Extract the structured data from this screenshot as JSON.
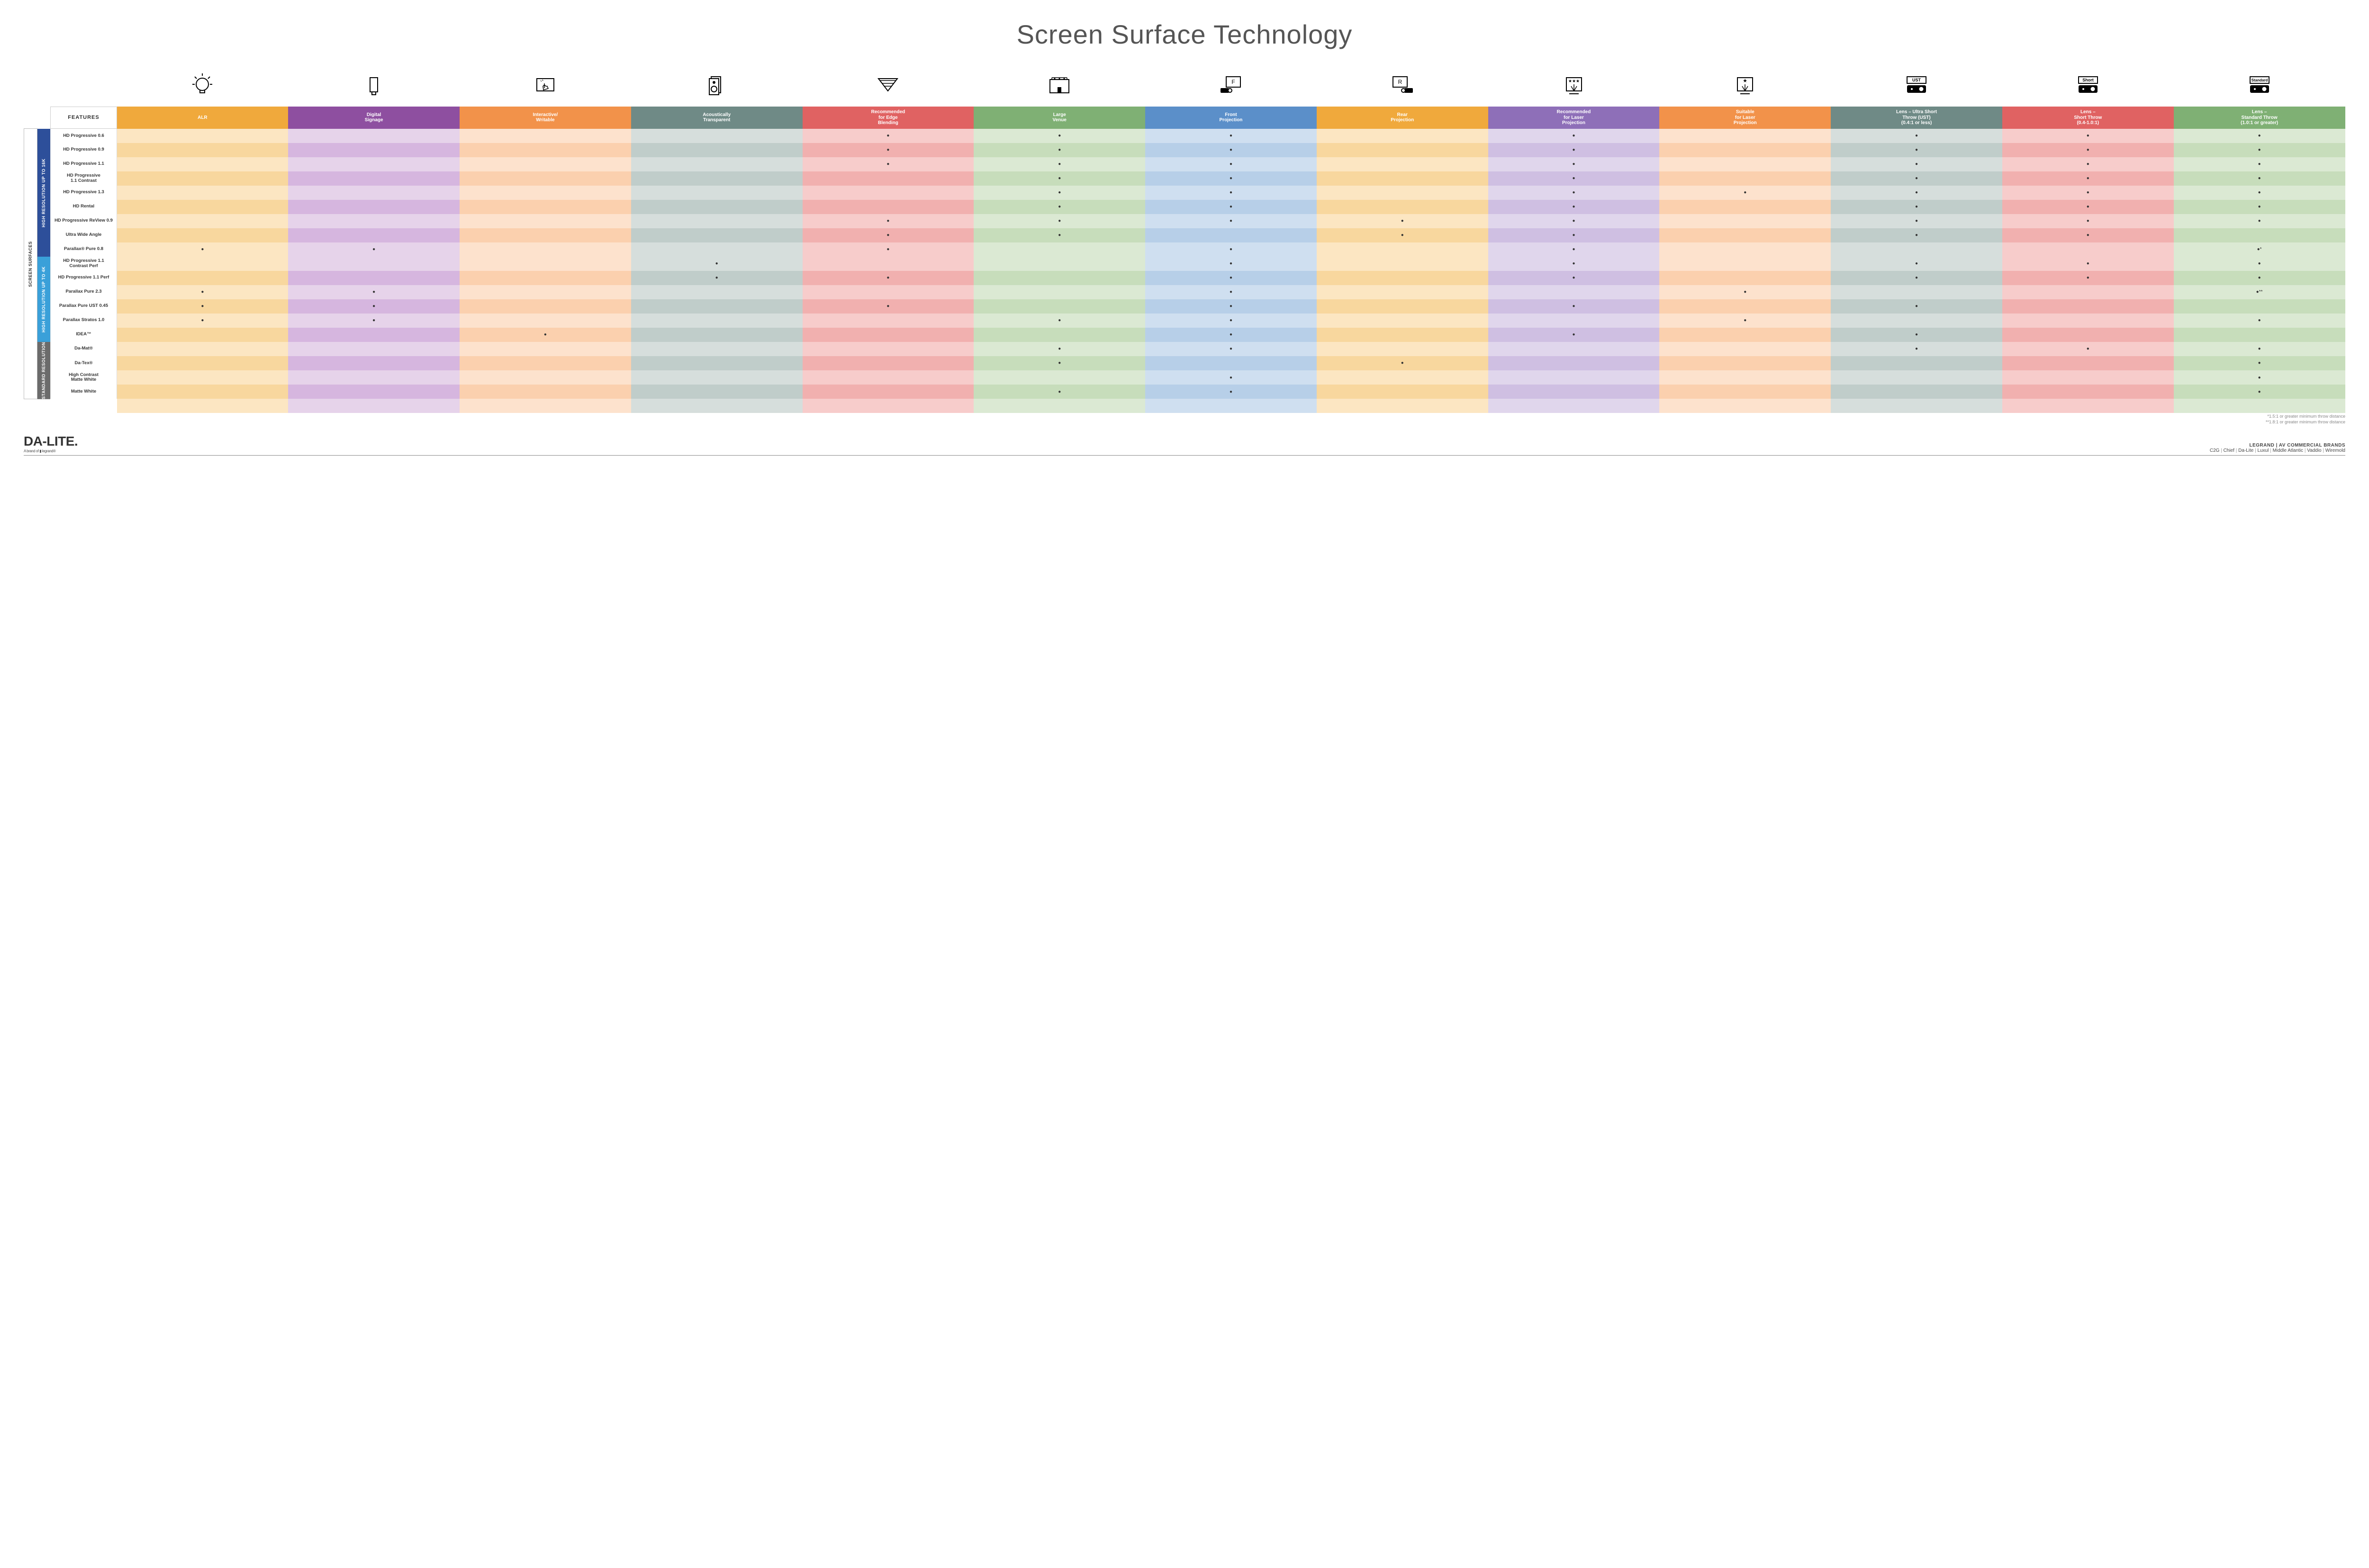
{
  "title": "Screen Surface Technology",
  "colors": {
    "columns": [
      {
        "key": "alr",
        "hdr": "#f0a93c",
        "light": "#fce6c2",
        "dark": "#f8d79e"
      },
      {
        "key": "signage",
        "hdr": "#8e4fa0",
        "light": "#e6d3ea",
        "dark": "#d6b6df"
      },
      {
        "key": "interactive",
        "hdr": "#f2924a",
        "light": "#fde2cd",
        "dark": "#fbd0ae"
      },
      {
        "key": "acoustic",
        "hdr": "#6f8a86",
        "light": "#d6dedc",
        "dark": "#c0cdca"
      },
      {
        "key": "edge",
        "hdr": "#e06262",
        "light": "#f7cccb",
        "dark": "#f1b0af"
      },
      {
        "key": "largevenue",
        "hdr": "#7fb074",
        "light": "#dbe9d3",
        "dark": "#c7ddbb"
      },
      {
        "key": "front",
        "hdr": "#5b8fc9",
        "light": "#cfdff0",
        "dark": "#b7cfe8"
      },
      {
        "key": "rear",
        "hdr": "#f0a93c",
        "light": "#fce6c2",
        "dark": "#f8d79e"
      },
      {
        "key": "reclaser",
        "hdr": "#8e6fb8",
        "light": "#e0d6ec",
        "dark": "#cfbfe2"
      },
      {
        "key": "suitlaser",
        "hdr": "#f2924a",
        "light": "#fde2cd",
        "dark": "#fbd0ae"
      },
      {
        "key": "ust",
        "hdr": "#6f8a86",
        "light": "#d6dedc",
        "dark": "#c0cdca"
      },
      {
        "key": "short",
        "hdr": "#e06262",
        "light": "#f7cccb",
        "dark": "#f1b0af"
      },
      {
        "key": "std",
        "hdr": "#7fb074",
        "light": "#dbe9d3",
        "dark": "#c7ddbb"
      }
    ],
    "groups": {
      "surfaces": "#ffffff",
      "16k": "#2d4f9a",
      "4k": "#3aa0d9",
      "std": "#6b6b6b"
    }
  },
  "columns": [
    {
      "key": "alr",
      "label": "ALR",
      "icon": "bulb"
    },
    {
      "key": "signage",
      "label": "Digital\nSignage",
      "icon": "kiosk"
    },
    {
      "key": "interactive",
      "label": "Interactive/\nWritable",
      "icon": "touch"
    },
    {
      "key": "acoustic",
      "label": "Acoustically\nTransparent",
      "icon": "speaker"
    },
    {
      "key": "edge",
      "label": "Recommended\nfor Edge\nBlending",
      "icon": "blend"
    },
    {
      "key": "largevenue",
      "label": "Large\nVenue",
      "icon": "venue"
    },
    {
      "key": "front",
      "label": "Front\nProjection",
      "icon": "front"
    },
    {
      "key": "rear",
      "label": "Rear\nProjection",
      "icon": "rear"
    },
    {
      "key": "reclaser",
      "label": "Recommended\nfor Laser\nProjection",
      "icon": "laserrec"
    },
    {
      "key": "suitlaser",
      "label": "Suitable\nfor Laser\nProjection",
      "icon": "lasersuit"
    },
    {
      "key": "ust",
      "label": "Lens – Ultra Short\nThrow (UST)\n(0.4:1 or less)",
      "icon": "projust"
    },
    {
      "key": "short",
      "label": "Lens –\nShort Throw\n(0.4-1.0:1)",
      "icon": "projshort"
    },
    {
      "key": "std",
      "label": "Lens –\nStandard Throw\n(1.0:1 or greater)",
      "icon": "projstd"
    }
  ],
  "features_header": "FEATURES",
  "side_labels": {
    "surfaces": "SCREEN SURFACES",
    "16k": "HIGH RESOLUTION UP TO 16K",
    "4k": "HIGH RESOLUTION UP TO 4K",
    "std": "STANDARD\nRESOLUTION"
  },
  "groups": [
    {
      "key": "16k",
      "rows": [
        {
          "name": "HD Progressive 0.6",
          "marks": {
            "edge": "●",
            "largevenue": "●",
            "front": "●",
            "reclaser": "●",
            "ust": "●",
            "short": "●",
            "std": "●"
          }
        },
        {
          "name": "HD Progressive 0.9",
          "marks": {
            "edge": "●",
            "largevenue": "●",
            "front": "●",
            "reclaser": "●",
            "ust": "●",
            "short": "●",
            "std": "●"
          }
        },
        {
          "name": "HD Progressive 1.1",
          "marks": {
            "edge": "●",
            "largevenue": "●",
            "front": "●",
            "reclaser": "●",
            "ust": "●",
            "short": "●",
            "std": "●"
          }
        },
        {
          "name": "HD Progressive\n1.1 Contrast",
          "marks": {
            "largevenue": "●",
            "front": "●",
            "reclaser": "●",
            "ust": "●",
            "short": "●",
            "std": "●"
          }
        },
        {
          "name": "HD Progressive 1.3",
          "marks": {
            "largevenue": "●",
            "front": "●",
            "reclaser": "●",
            "suitlaser": "●",
            "ust": "●",
            "short": "●",
            "std": "●"
          }
        },
        {
          "name": "HD Rental",
          "marks": {
            "largevenue": "●",
            "front": "●",
            "reclaser": "●",
            "ust": "●",
            "short": "●",
            "std": "●"
          }
        },
        {
          "name": "HD Progressive ReView 0.9",
          "marks": {
            "edge": "●",
            "largevenue": "●",
            "front": "●",
            "rear": "●",
            "reclaser": "●",
            "ust": "●",
            "short": "●",
            "std": "●"
          }
        },
        {
          "name": "Ultra Wide Angle",
          "marks": {
            "edge": "●",
            "largevenue": "●",
            "rear": "●",
            "reclaser": "●",
            "ust": "●",
            "short": "●"
          }
        },
        {
          "name": "Parallax® Pure 0.8",
          "marks": {
            "alr": "●",
            "signage": "●",
            "edge": "●",
            "front": "●",
            "reclaser": "●",
            "std": "●*"
          }
        }
      ]
    },
    {
      "key": "4k",
      "rows": [
        {
          "name": "HD Progressive 1.1\nContrast Perf",
          "marks": {
            "acoustic": "●",
            "front": "●",
            "reclaser": "●",
            "ust": "●",
            "short": "●",
            "std": "●"
          }
        },
        {
          "name": "HD Progressive 1.1 Perf",
          "marks": {
            "acoustic": "●",
            "edge": "●",
            "front": "●",
            "reclaser": "●",
            "ust": "●",
            "short": "●",
            "std": "●"
          }
        },
        {
          "name": "Parallax Pure 2.3",
          "marks": {
            "alr": "●",
            "signage": "●",
            "front": "●",
            "suitlaser": "●",
            "std": "●**"
          }
        },
        {
          "name": "Parallax Pure UST 0.45",
          "marks": {
            "alr": "●",
            "signage": "●",
            "edge": "●",
            "front": "●",
            "reclaser": "●",
            "ust": "●"
          }
        },
        {
          "name": "Parallax Stratos 1.0",
          "marks": {
            "alr": "●",
            "signage": "●",
            "largevenue": "●",
            "front": "●",
            "suitlaser": "●",
            "std": "●"
          }
        },
        {
          "name": "IDEA™",
          "marks": {
            "interactive": "●",
            "front": "●",
            "reclaser": "●",
            "ust": "●"
          }
        }
      ]
    },
    {
      "key": "std",
      "rows": [
        {
          "name": "Da-Mat®",
          "marks": {
            "largevenue": "●",
            "front": "●",
            "ust": "●",
            "short": "●",
            "std": "●"
          }
        },
        {
          "name": "Da-Tex®",
          "marks": {
            "largevenue": "●",
            "rear": "●",
            "std": "●"
          }
        },
        {
          "name": "High Contrast\nMatte White",
          "marks": {
            "front": "●",
            "std": "●"
          }
        },
        {
          "name": "Matte White",
          "marks": {
            "largevenue": "●",
            "front": "●",
            "std": "●"
          }
        }
      ]
    }
  ],
  "footnotes": [
    "*1.5:1 or greater minimum throw distance",
    "**1.8:1 or greater minimum throw distance"
  ],
  "footer": {
    "logo": "DA-LITE.",
    "logo_sub": "A brand of ▮ legrand®",
    "brands_title": "LEGRAND | AV COMMERCIAL BRANDS",
    "brands": [
      "C2G",
      "Chief",
      "Da-Lite",
      "Luxul",
      "Middle Atlantic",
      "Vaddio",
      "Wiremold"
    ]
  },
  "icons": {
    "bulb": "lightbulb-icon",
    "kiosk": "kiosk-icon",
    "touch": "touch-screen-icon",
    "speaker": "speaker-icon",
    "blend": "edge-blend-icon",
    "venue": "large-venue-icon",
    "front": "front-projection-icon",
    "rear": "rear-projection-icon",
    "laserrec": "laser-recommended-icon",
    "lasersuit": "laser-suitable-icon",
    "projust": "projector-ust-icon",
    "projshort": "projector-short-icon",
    "projstd": "projector-standard-icon"
  }
}
